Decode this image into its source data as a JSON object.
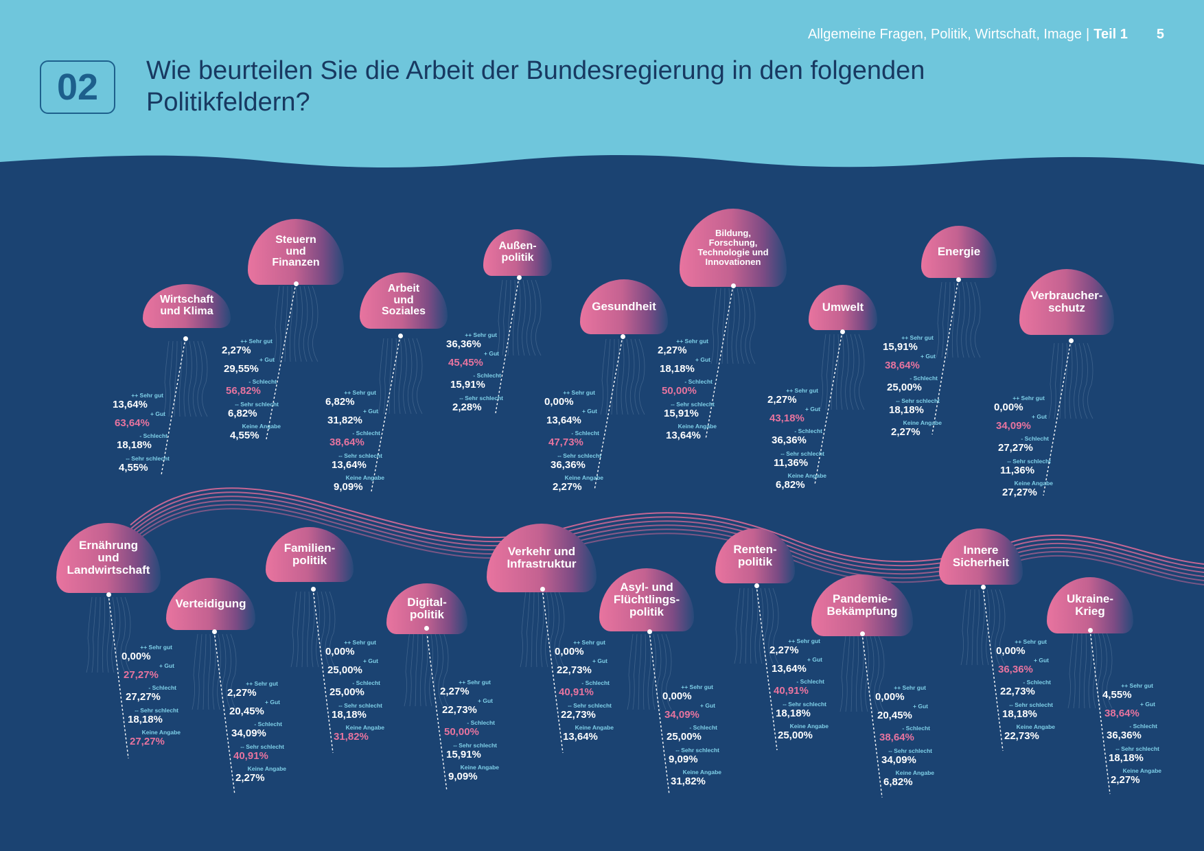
{
  "header": {
    "section": "Allgemeine Fragen, Politik, Wirtschaft, Image",
    "separator": "|",
    "part": "Teil 1",
    "page_number": "5"
  },
  "question": {
    "number": "02",
    "title": "Wie beurteilen Sie die Arbeit der Bundesregierung in den folgenden Politikfeldern?"
  },
  "colors": {
    "ocean": "#1b4372",
    "sky": "#6fc6dc",
    "highlight": "#e8749f",
    "label": "#7fd0e8"
  },
  "rating_labels": [
    "++ Sehr gut",
    "+ Gut",
    "- Schlecht",
    "-- Sehr schlecht",
    "Keine Angabe"
  ],
  "fields": [
    {
      "name": "Wirtschaft\nund Klima",
      "labels": [
        "++ Sehr gut",
        "+ Gut",
        "- Schlecht",
        "-- Sehr schlecht",
        ""
      ],
      "values": [
        "13,64%",
        "63,64%",
        "18,18%",
        "4,55%",
        ""
      ],
      "highlight": 1
    },
    {
      "name": "Steuern\nund\nFinanzen",
      "labels": [
        "++ Sehr gut",
        "+ Gut",
        "- Schlecht",
        "-- Sehr schlecht",
        "Keine Angabe"
      ],
      "values": [
        "2,27%",
        "29,55%",
        "56,82%",
        "6,82%",
        "4,55%"
      ],
      "highlight": 2
    },
    {
      "name": "Arbeit\nund\nSoziales",
      "labels": [
        "++ Sehr gut",
        "+ Gut",
        "- Schlecht",
        "-- Sehr schlecht",
        "Keine Angabe"
      ],
      "values": [
        "6,82%",
        "31,82%",
        "38,64%",
        "13,64%",
        "9,09%"
      ],
      "highlight": 2
    },
    {
      "name": "Außen-\npolitik",
      "labels": [
        "++ Sehr gut",
        "+ Gut",
        "- Schlecht",
        "-- Sehr schlecht",
        ""
      ],
      "values": [
        "36,36%",
        "45,45%",
        "15,91%",
        "2,28%",
        ""
      ],
      "highlight": 1
    },
    {
      "name": "Gesundheit",
      "labels": [
        "++ Sehr gut",
        "+ Gut",
        "- Schlecht",
        "-- Sehr schlecht",
        "Keine Angabe"
      ],
      "values": [
        "0,00%",
        "13,64%",
        "47,73%",
        "36,36%",
        "2,27%"
      ],
      "highlight": 2
    },
    {
      "name": "Bildung,\nForschung,\nTechnologie und\nInnovationen",
      "labels": [
        "++ Sehr gut",
        "+ Gut",
        "- Schlecht",
        "-- Sehr schlecht",
        "Keine Angabe"
      ],
      "values": [
        "2,27%",
        "18,18%",
        "50,00%",
        "15,91%",
        "13,64%"
      ],
      "highlight": 2
    },
    {
      "name": "Umwelt",
      "labels": [
        "++ Sehr gut",
        "+ Gut",
        "- Schlecht",
        "-- Sehr schlecht",
        "Keine Angabe"
      ],
      "values": [
        "2,27%",
        "43,18%",
        "36,36%",
        "11,36%",
        "6,82%"
      ],
      "highlight": 1
    },
    {
      "name": "Energie",
      "labels": [
        "++ Sehr gut",
        "+ Gut",
        "- Schlecht",
        "-- Sehr schlecht",
        "Keine Angabe"
      ],
      "values": [
        "15,91%",
        "38,64%",
        "25,00%",
        "18,18%",
        "2,27%"
      ],
      "highlight": 1
    },
    {
      "name": "Verbraucher-\nschutz",
      "labels": [
        "++ Sehr gut",
        "+ Gut",
        "- Schlecht",
        "-- Sehr schlecht",
        "Keine Angabe"
      ],
      "values": [
        "0,00%",
        "34,09%",
        "27,27%",
        "11,36%",
        "27,27%"
      ],
      "highlight": 1
    },
    {
      "name": "Ernährung\nund\nLandwirtschaft",
      "labels": [
        "++ Sehr gut",
        "+ Gut",
        "- Schlecht",
        "-- Sehr schlecht",
        "Keine Angabe"
      ],
      "values": [
        "0,00%",
        "27,27%",
        "27,27%",
        "18,18%",
        "27,27%"
      ],
      "highlight": [
        1,
        4
      ]
    },
    {
      "name": "Verteidigung",
      "labels": [
        "++ Sehr gut",
        "+ Gut",
        "- Schlecht",
        "-- Sehr schlecht",
        "Keine Angabe"
      ],
      "values": [
        "2,27%",
        "20,45%",
        "34,09%",
        "40,91%",
        "2,27%"
      ],
      "highlight": 3
    },
    {
      "name": "Familien-\npolitik",
      "labels": [
        "++ Sehr gut",
        "+ Gut",
        "- Schlecht",
        "-- Sehr schlecht",
        "Keine Angabe"
      ],
      "values": [
        "0,00%",
        "25,00%",
        "25,00%",
        "18,18%",
        "31,82%"
      ],
      "highlight": 4
    },
    {
      "name": "Digital-\npolitik",
      "labels": [
        "++ Sehr gut",
        "+ Gut",
        "- Schlecht",
        "-- Sehr schlecht",
        "Keine Angabe"
      ],
      "values": [
        "2,27%",
        "22,73%",
        "50,00%",
        "15,91%",
        "9,09%"
      ],
      "highlight": 2
    },
    {
      "name": "Verkehr und\nInfrastruktur",
      "labels": [
        "++ Sehr gut",
        "+ Gut",
        "- Schlecht",
        "-- Sehr schlecht",
        "Keine Angabe"
      ],
      "values": [
        "0,00%",
        "22,73%",
        "40,91%",
        "22,73%",
        "13,64%"
      ],
      "highlight": 2
    },
    {
      "name": "Asyl- und\nFlüchtlings-\npolitik",
      "labels": [
        "++ Sehr gut",
        "+ Gut",
        "- Schlecht",
        "-- Sehr schlecht",
        "Keine Angabe"
      ],
      "values": [
        "0,00%",
        "34,09%",
        "25,00%",
        "9,09%",
        "31,82%"
      ],
      "highlight": 1
    },
    {
      "name": "Renten-\npolitik",
      "labels": [
        "++ Sehr gut",
        "+ Gut",
        "- Schlecht",
        "-- Sehr schlecht",
        "Keine Angabe"
      ],
      "values": [
        "2,27%",
        "13,64%",
        "40,91%",
        "18,18%",
        "25,00%"
      ],
      "highlight": 2
    },
    {
      "name": "Pandemie-\nBekämpfung",
      "labels": [
        "++ Sehr gut",
        "+ Gut",
        "- Schlecht",
        "-- Sehr schlecht",
        "Keine Angabe"
      ],
      "values": [
        "0,00%",
        "20,45%",
        "38,64%",
        "34,09%",
        "6,82%"
      ],
      "highlight": 2
    },
    {
      "name": "Innere\nSicherheit",
      "labels": [
        "++ Sehr gut",
        "+ Gut",
        "- Schlecht",
        "-- Sehr schlecht",
        "Keine Angabe"
      ],
      "values": [
        "0,00%",
        "36,36%",
        "22,73%",
        "18,18%",
        "22,73%"
      ],
      "highlight": 1
    },
    {
      "name": "Ukraine-\nKrieg",
      "labels": [
        "++ Sehr gut",
        "+ Gut",
        "- Schlecht",
        "-- Sehr schlecht",
        "Keine Angabe"
      ],
      "values": [
        "4,55%",
        "38,64%",
        "36,36%",
        "18,18%",
        "2,27%"
      ],
      "highlight": 1
    }
  ]
}
